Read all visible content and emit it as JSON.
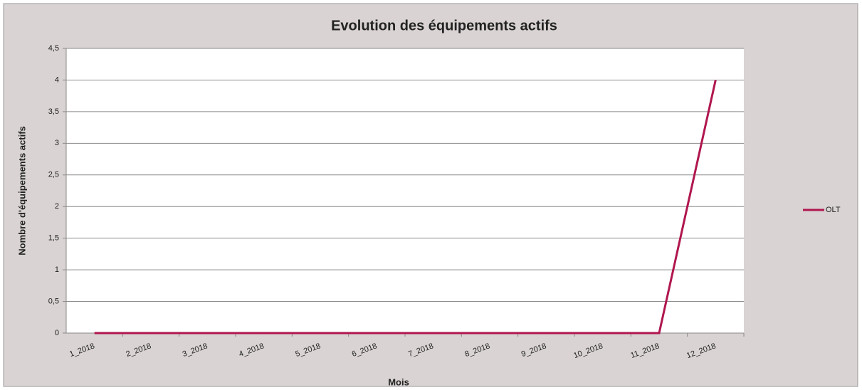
{
  "chart_data": {
    "type": "line",
    "title": "Evolution des équipements actifs",
    "x_label": "Mois",
    "y_label": "Nombre d'équipements actifs",
    "categories": [
      "1_2018",
      "2_2018",
      "3_2018",
      "4_2018",
      "5_2018",
      "6_2018",
      "7_2018",
      "8_2018",
      "9_2018",
      "10_2018",
      "11_2018",
      "12_2018"
    ],
    "series": [
      {
        "name": "OLT",
        "color": "#b0174f",
        "values": [
          0,
          0,
          0,
          0,
          0,
          0,
          0,
          0,
          0,
          0,
          0,
          4
        ]
      }
    ],
    "ylim": [
      0,
      4.5
    ],
    "yticks": [
      0,
      {
        "value": 0.5,
        "label": "0,5"
      },
      1,
      {
        "value": 1.5,
        "label": "1,5"
      },
      2,
      {
        "value": 2.5,
        "label": "2,5"
      },
      3,
      {
        "value": 3.5,
        "label": "3,5"
      },
      4,
      {
        "value": 4.5,
        "label": "4,5"
      }
    ],
    "grid": true,
    "legend": "right"
  }
}
